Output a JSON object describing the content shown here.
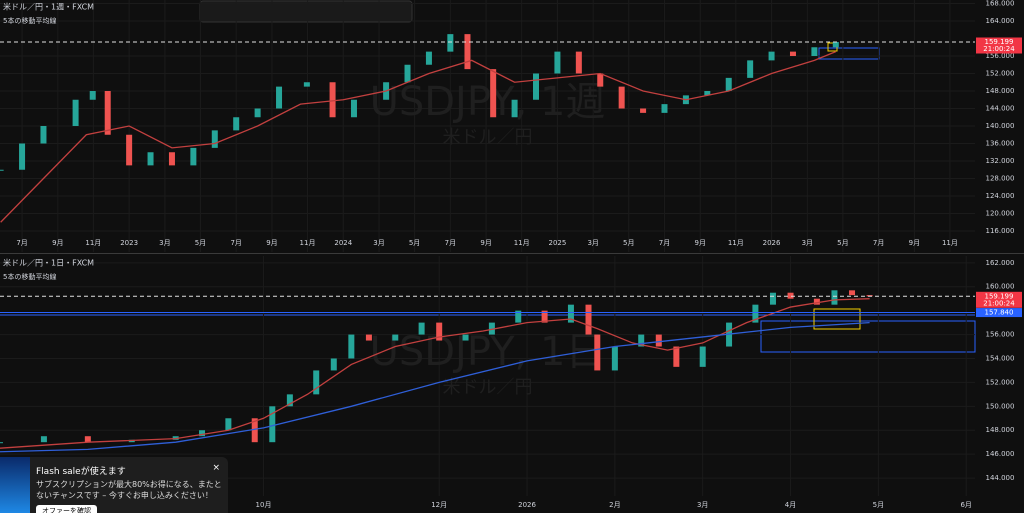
{
  "chart_data": [
    {
      "type": "candlestick",
      "title": "米ドル／円・1週・FXCM",
      "indicator": "5本の移動平均線",
      "watermark": "USDJPY, 1週",
      "watermark_sub": "米ドル／円",
      "up_color": "#26a69a",
      "down_color": "#ef5350",
      "xlim": [
        2022.397,
        2026.95
      ],
      "ylim": [
        111.2,
        168.8
      ],
      "xticks": [
        {
          "value": 2022.5,
          "label": "7月"
        },
        {
          "value": 2022.667,
          "label": "9月"
        },
        {
          "value": 2022.833,
          "label": "11月"
        },
        {
          "value": 2023,
          "label": "2023"
        },
        {
          "value": 2023.167,
          "label": "3月"
        },
        {
          "value": 2023.333,
          "label": "5月"
        },
        {
          "value": 2023.5,
          "label": "7月"
        },
        {
          "value": 2023.667,
          "label": "9月"
        },
        {
          "value": 2023.833,
          "label": "11月"
        },
        {
          "value": 2024,
          "label": "2024"
        },
        {
          "value": 2024.167,
          "label": "3月"
        },
        {
          "value": 2024.333,
          "label": "5月"
        },
        {
          "value": 2024.5,
          "label": "7月"
        },
        {
          "value": 2024.667,
          "label": "9月"
        },
        {
          "value": 2024.833,
          "label": "11月"
        },
        {
          "value": 2025,
          "label": "2025"
        },
        {
          "value": 2025.167,
          "label": "3月"
        },
        {
          "value": 2025.333,
          "label": "5月"
        },
        {
          "value": 2025.5,
          "label": "7月"
        },
        {
          "value": 2025.667,
          "label": "9月"
        },
        {
          "value": 2025.833,
          "label": "11月"
        },
        {
          "value": 2026,
          "label": "2026"
        },
        {
          "value": 2026.167,
          "label": "3月"
        },
        {
          "value": 2026.333,
          "label": "5月"
        },
        {
          "value": 2026.5,
          "label": "7月"
        },
        {
          "value": 2026.667,
          "label": "9月"
        },
        {
          "value": 2026.833,
          "label": "11月"
        }
      ],
      "yticks": [
        {
          "value": 116,
          "label": "116.000"
        },
        {
          "value": 120,
          "label": "120.000"
        },
        {
          "value": 124,
          "label": "124.000"
        },
        {
          "value": 128,
          "label": "128.000"
        },
        {
          "value": 132,
          "label": "132.000"
        },
        {
          "value": 136,
          "label": "136.000"
        },
        {
          "value": 140,
          "label": "140.000"
        },
        {
          "value": 144,
          "label": "144.000"
        },
        {
          "value": 148,
          "label": "148.000"
        },
        {
          "value": 152,
          "label": "152.000"
        },
        {
          "value": 156,
          "label": "156.000"
        },
        {
          "value": 164,
          "label": "164.000"
        },
        {
          "value": 168,
          "label": "168.000"
        }
      ],
      "price_labels": [
        {
          "value": 159.199,
          "label": "159.199",
          "color": "#f23645"
        }
      ],
      "countdown": "21:00:24",
      "series": [
        {
          "color": "#26a69a",
          "x": [
            2022.4,
            2022.5,
            2022.6,
            2022.75,
            2022.83,
            2022.9,
            2023.0,
            2023.1,
            2023.2,
            2023.3,
            2023.4,
            2023.5,
            2023.6,
            2023.7,
            2023.83,
            2023.95,
            2024.05,
            2024.2,
            2024.3,
            2024.4,
            2024.5,
            2024.58,
            2024.7,
            2024.8,
            2024.9,
            2025.0,
            2025.1,
            2025.2,
            2025.3,
            2025.4,
            2025.5,
            2025.6,
            2025.7,
            2025.8,
            2025.9,
            2026.0,
            2026.1,
            2026.2,
            2026.3
          ],
          "values": [
            130,
            136,
            140,
            146,
            148,
            138,
            131,
            134,
            131,
            135,
            139,
            142,
            144,
            149,
            150,
            142,
            146,
            150,
            154,
            157,
            161,
            153,
            142,
            146,
            152,
            157,
            152,
            149,
            144,
            143,
            145,
            147,
            148,
            151,
            155,
            157,
            156,
            158,
            159.2
          ]
        },
        {
          "color": "#c2403f",
          "x": [
            2022.4,
            2022.6,
            2022.8,
            2023.0,
            2023.2,
            2023.4,
            2023.6,
            2023.8,
            2024.0,
            2024.2,
            2024.4,
            2024.6,
            2024.8,
            2025.0,
            2025.2,
            2025.4,
            2025.6,
            2025.8,
            2026.0,
            2026.2,
            2026.3
          ],
          "values": [
            118,
            128,
            138,
            140,
            135,
            136,
            140,
            145,
            146,
            148,
            152,
            155,
            150,
            151,
            152,
            148,
            146,
            148,
            152,
            155,
            157
          ]
        }
      ]
    },
    {
      "type": "candlestick",
      "title": "米ドル／円・1日・FXCM",
      "indicator": "5本の移動平均線",
      "watermark": "USDJPY, 1日",
      "watermark_sub": "米ドル／円",
      "up_color": "#26a69a",
      "down_color": "#ef5350",
      "xlim": [
        7.0,
        18.1
      ],
      "ylim": [
        142.5,
        162.57
      ],
      "xticks": [
        {
          "value": 10,
          "label": "10月"
        },
        {
          "value": 12,
          "label": "12月"
        },
        {
          "value": 13,
          "label": "2026"
        },
        {
          "value": 14,
          "label": "2月"
        },
        {
          "value": 15,
          "label": "3月"
        },
        {
          "value": 16,
          "label": "4月"
        },
        {
          "value": 17,
          "label": "5月"
        },
        {
          "value": 18,
          "label": "6月"
        }
      ],
      "yticks": [
        {
          "value": 144,
          "label": "144.000"
        },
        {
          "value": 146,
          "label": "146.000"
        },
        {
          "value": 148,
          "label": "148.000"
        },
        {
          "value": 150,
          "label": "150.000"
        },
        {
          "value": 152,
          "label": "152.000"
        },
        {
          "value": 154,
          "label": "154.000"
        },
        {
          "value": 156,
          "label": "156.000"
        },
        {
          "value": 160,
          "label": "160.000"
        },
        {
          "value": 162,
          "label": "162.000"
        }
      ],
      "price_labels": [
        {
          "value": 159.199,
          "label": "159.199",
          "color": "#f23645"
        },
        {
          "value": 157.84,
          "label": "157.840",
          "color": "#2962ff"
        }
      ],
      "countdown": "21:00:24",
      "series": [
        {
          "color": "#26a69a",
          "x": [
            7.0,
            7.5,
            8.0,
            8.5,
            9.0,
            9.3,
            9.6,
            9.9,
            10.1,
            10.3,
            10.6,
            10.8,
            11.0,
            11.2,
            11.5,
            11.8,
            12.0,
            12.3,
            12.6,
            12.9,
            13.2,
            13.5,
            13.7,
            13.8,
            14.0,
            14.3,
            14.5,
            14.7,
            15.0,
            15.3,
            15.6,
            15.8,
            16.0,
            16.3,
            16.5,
            16.7,
            16.9
          ],
          "values": [
            147,
            147.5,
            147,
            147.2,
            147.5,
            148,
            149,
            147,
            150,
            151,
            153,
            154,
            156,
            155.5,
            156,
            157,
            155.5,
            156,
            157,
            158,
            157,
            158.5,
            156,
            153,
            155,
            156,
            155,
            153.3,
            155,
            157,
            158.5,
            159.5,
            159,
            158.5,
            159.7,
            159.3,
            159.2
          ]
        },
        {
          "color": "#c2403f",
          "x": [
            7.0,
            8,
            9,
            9.6,
            10,
            10.5,
            11,
            11.5,
            12,
            12.5,
            13,
            13.5,
            13.8,
            14.2,
            14.6,
            15,
            15.5,
            16,
            16.5,
            16.9
          ],
          "values": [
            146.5,
            147,
            147.3,
            148,
            149,
            151,
            153.5,
            155,
            155.8,
            156.3,
            157,
            157.3,
            156.5,
            155.3,
            154.7,
            155.3,
            157,
            158.3,
            158.9,
            159
          ]
        },
        {
          "color": "#2f5fd8",
          "x": [
            7.0,
            8,
            9,
            10,
            11,
            12,
            13,
            14,
            15,
            16,
            16.9
          ],
          "values": [
            146.2,
            146.4,
            147,
            148.2,
            150,
            152,
            153.8,
            155,
            155.8,
            156.6,
            157
          ]
        }
      ]
    }
  ],
  "popup": {
    "title": "Flash saleが使えます",
    "lines": [
      "サブスクリプションが最大80%お得になる、またと",
      "ないチャンスです – 今すぐお申し込みください！"
    ],
    "button": "オファーを確認"
  }
}
